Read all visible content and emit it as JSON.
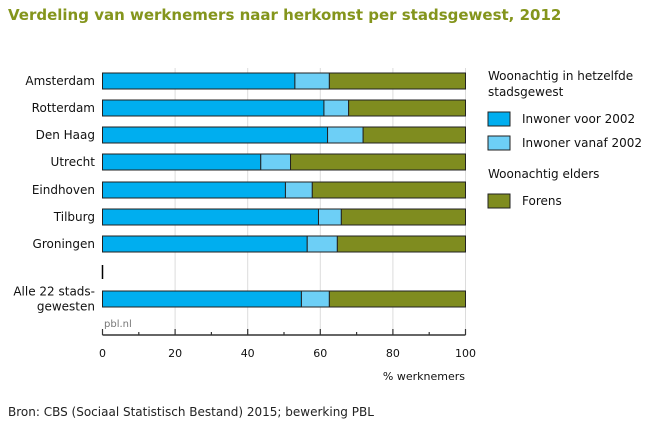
{
  "title": "Verdeling van werknemers naar herkomst per stadsgewest, 2012",
  "source": "Bron: CBS (Sociaal Statistisch Bestand) 2015; bewerking PBL",
  "chart_data": {
    "type": "bar",
    "stacked": true,
    "orientation": "horizontal",
    "title": "Verdeling van werknemers naar herkomst per stadsgewest, 2012",
    "xlabel": "% werknemers",
    "xlim": [
      0,
      100
    ],
    "xticks": [
      "0",
      "20",
      "40",
      "60",
      "80",
      "100"
    ],
    "watermark": "pbl.nl",
    "categories": [
      "Amsterdam",
      "Rotterdam",
      "Den Haag",
      "Utrecht",
      "Eindhoven",
      "Tilburg",
      "Groningen",
      "Alle 22 stads-\ngewesten"
    ],
    "series": [
      {
        "name": "Inwoner voor 2002",
        "color": "#00aeef",
        "values": [
          53,
          61,
          62,
          43.6,
          50.4,
          59.5,
          56.4,
          54.8
        ]
      },
      {
        "name": "Inwoner vanaf 2002",
        "color": "#6dcff6",
        "values": [
          9.5,
          6.8,
          9.8,
          8.2,
          7.4,
          6.3,
          8.3,
          7.7
        ]
      },
      {
        "name": "Forens",
        "color": "#7f8c1f",
        "values": [
          37.5,
          32.2,
          28.2,
          48.2,
          42.2,
          34.2,
          35.3,
          37.5
        ]
      }
    ],
    "legend": {
      "placement": "right",
      "groups": [
        {
          "heading": "Woonachtig in hetzelfde\nstadsgewest",
          "items": [
            "Inwoner voor 2002",
            "Inwoner vanaf 2002"
          ]
        },
        {
          "heading": "Woonachtig elders",
          "items": [
            "Forens"
          ]
        }
      ]
    }
  }
}
